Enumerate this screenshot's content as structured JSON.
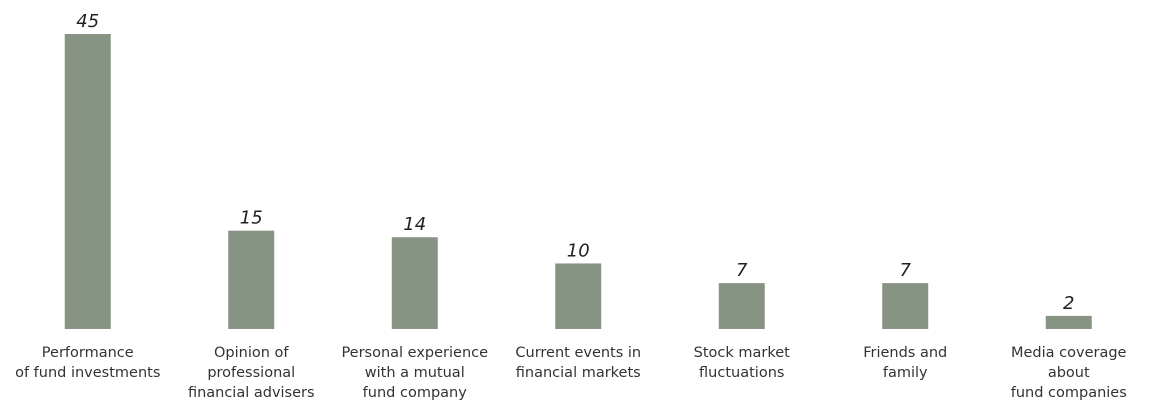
{
  "chart_data": {
    "type": "bar",
    "categories": [
      "Performance\nof fund investments",
      "Opinion of\nprofessional\nfinancial advisers",
      "Personal experience\nwith a mutual\nfund company",
      "Current events in\nfinancial markets",
      "Stock market\nfluctuations",
      "Friends and\nfamily",
      "Media coverage about\nfund companies"
    ],
    "values": [
      45,
      15,
      14,
      10,
      7,
      7,
      2
    ],
    "color": "#879484"
  }
}
